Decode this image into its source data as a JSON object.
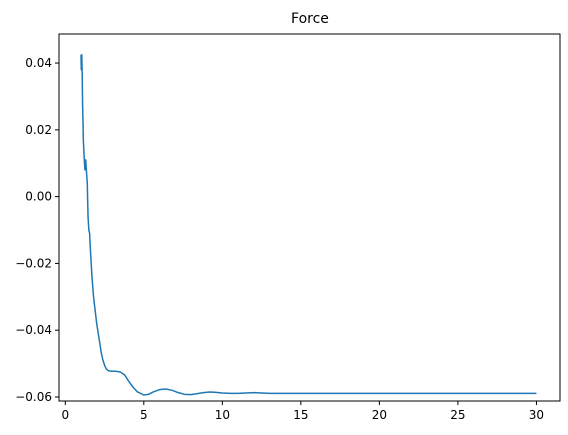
{
  "chart_data": {
    "type": "line",
    "title": "Force",
    "xlabel": "",
    "ylabel": "",
    "xlim": [
      -0.4,
      31.5
    ],
    "ylim": [
      -0.0612,
      0.0487
    ],
    "xticks": [
      0,
      5,
      10,
      15,
      20,
      25,
      30
    ],
    "xtick_labels": [
      "0",
      "5",
      "10",
      "15",
      "20",
      "25",
      "30"
    ],
    "yticks": [
      0.04,
      0.02,
      0.0,
      -0.02,
      -0.04,
      -0.06
    ],
    "ytick_labels": [
      "0.04",
      "0.02",
      "0.00",
      "−0.02",
      "−0.04",
      "−0.06"
    ],
    "grid": false,
    "legend": "none",
    "series": [
      {
        "color": "#1f77b4",
        "x": [
          1.0,
          1.02,
          1.05,
          1.08,
          1.1,
          1.13,
          1.15,
          1.2,
          1.25,
          1.3,
          1.35,
          1.4,
          1.45,
          1.5,
          1.55,
          1.6,
          1.7,
          1.8,
          1.9,
          2.0,
          2.1,
          2.2,
          2.3,
          2.4,
          2.5,
          2.6,
          2.7,
          2.8,
          3.0,
          3.2,
          3.5,
          3.8,
          4.0,
          4.3,
          4.6,
          5.0,
          5.3,
          5.6,
          6.0,
          6.4,
          6.8,
          7.2,
          7.6,
          8.0,
          8.4,
          8.8,
          9.2,
          9.6,
          10.0,
          10.5,
          11.0,
          11.5,
          12.0,
          12.5,
          13.0,
          14.0,
          15.0,
          16.0,
          18.0,
          20.0,
          22.0,
          25.0,
          28.0,
          30.0
        ],
        "y": [
          0.0425,
          0.038,
          0.0425,
          0.036,
          0.028,
          0.022,
          0.017,
          0.012,
          0.008,
          0.011,
          0.0075,
          0.004,
          -0.006,
          -0.01,
          -0.011,
          -0.016,
          -0.024,
          -0.03,
          -0.034,
          -0.038,
          -0.041,
          -0.044,
          -0.047,
          -0.049,
          -0.0505,
          -0.0515,
          -0.052,
          -0.0522,
          -0.0523,
          -0.0523,
          -0.0525,
          -0.0535,
          -0.055,
          -0.057,
          -0.0585,
          -0.0594,
          -0.0592,
          -0.0585,
          -0.0578,
          -0.0576,
          -0.058,
          -0.0587,
          -0.0592,
          -0.0593,
          -0.059,
          -0.0587,
          -0.0585,
          -0.0586,
          -0.0588,
          -0.0589,
          -0.0589,
          -0.0588,
          -0.0587,
          -0.0588,
          -0.0589,
          -0.0589,
          -0.0589,
          -0.0589,
          -0.0589,
          -0.0589,
          -0.0589,
          -0.0589,
          -0.0589,
          -0.0589
        ]
      }
    ]
  }
}
